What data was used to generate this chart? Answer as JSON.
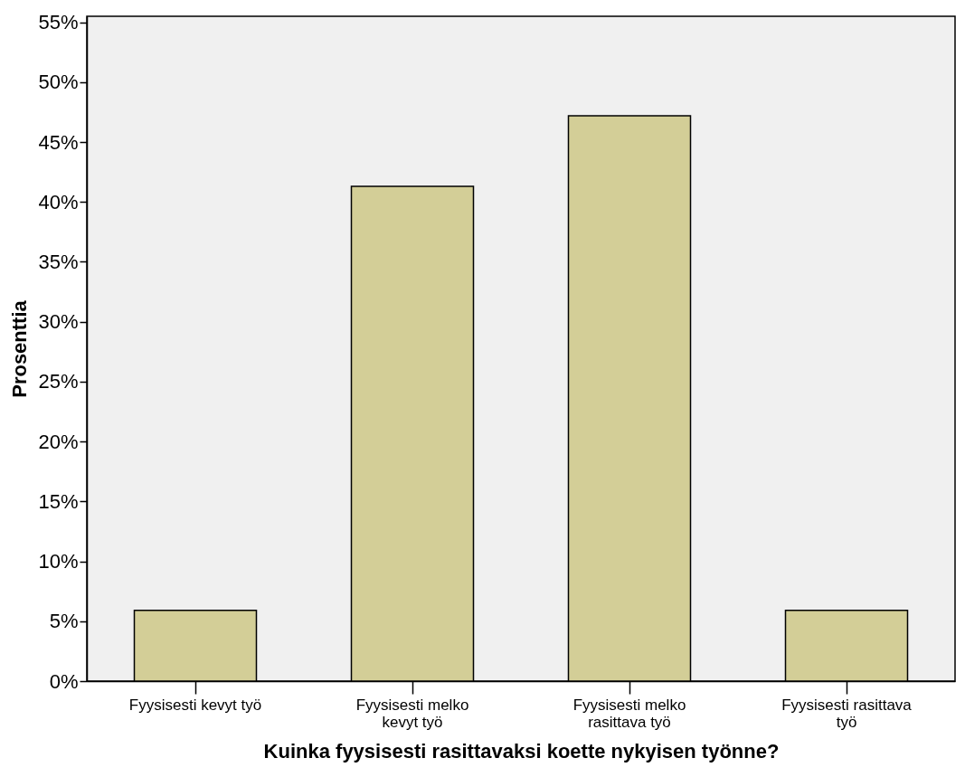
{
  "chart_data": {
    "type": "bar",
    "xlabel": "Kuinka fyysisesti rasittavaksi koette nykyisen työnne?",
    "ylabel": "Prosenttia",
    "categories": [
      "Fyysisesti kevyt työ",
      "Fyysisesti melko kevyt työ",
      "Fyysisesti melko rasittava työ",
      "Fyysisesti rasittava työ"
    ],
    "values": [
      5.9,
      41.3,
      47.2,
      5.9
    ],
    "color": "#d3ce97",
    "ylim": [
      0,
      55.5
    ],
    "yticks": [
      {
        "value": 0,
        "label": "0%"
      },
      {
        "value": 5,
        "label": "5%"
      },
      {
        "value": 10,
        "label": "10%"
      },
      {
        "value": 15,
        "label": "15%"
      },
      {
        "value": 20,
        "label": "20%"
      },
      {
        "value": 25,
        "label": "25%"
      },
      {
        "value": 30,
        "label": "30%"
      },
      {
        "value": 35,
        "label": "35%"
      },
      {
        "value": 40,
        "label": "40%"
      },
      {
        "value": 45,
        "label": "45%"
      },
      {
        "value": 50,
        "label": "50%"
      },
      {
        "value": 55,
        "label": "55%"
      }
    ],
    "grid": false
  }
}
